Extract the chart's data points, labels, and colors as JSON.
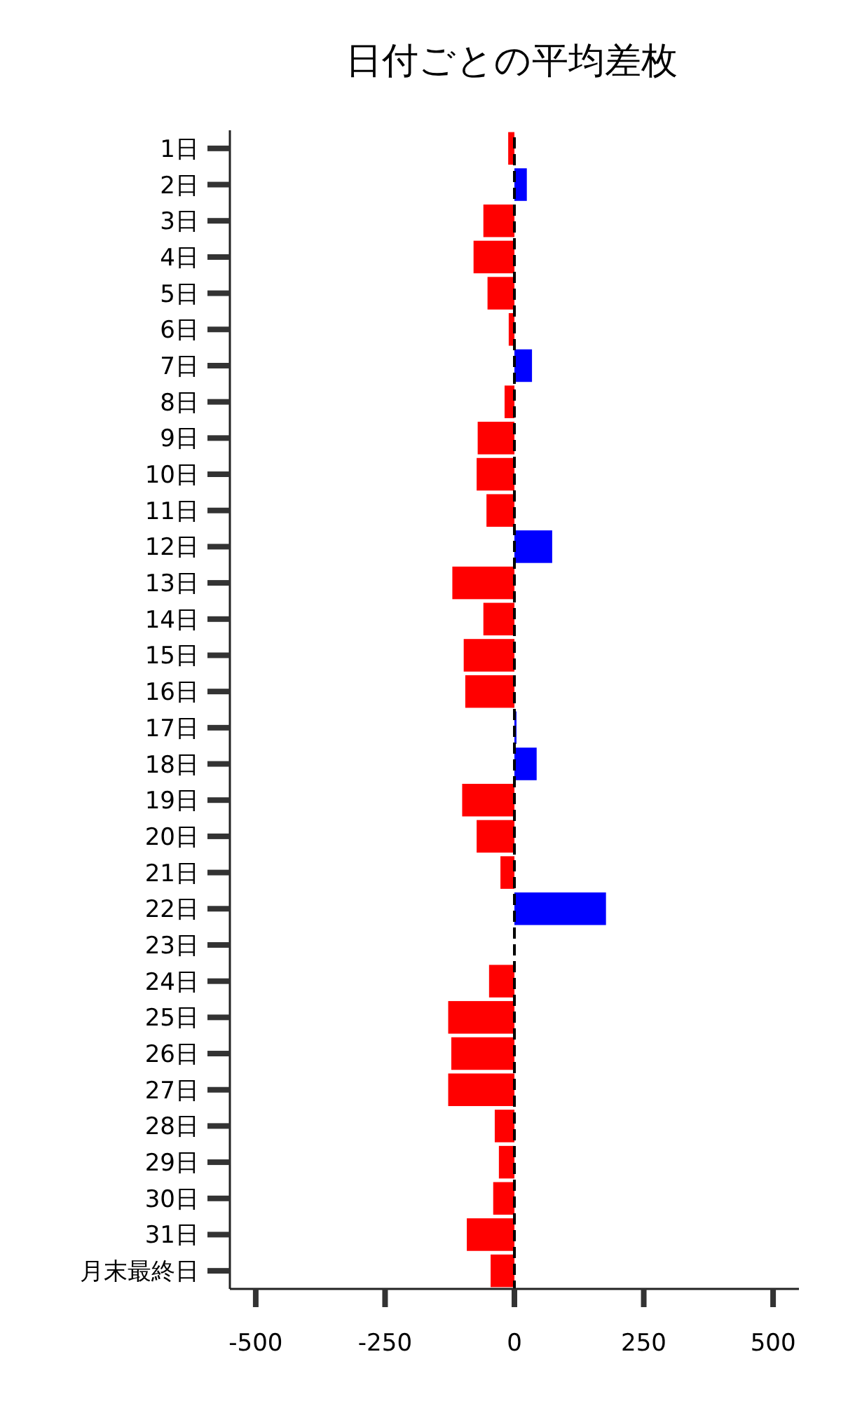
{
  "chart_data": {
    "type": "bar",
    "orientation": "horizontal",
    "title": "日付ごとの平均差枚",
    "categories": [
      "1日",
      "2日",
      "3日",
      "4日",
      "5日",
      "6日",
      "7日",
      "8日",
      "9日",
      "10日",
      "11日",
      "12日",
      "13日",
      "14日",
      "15日",
      "16日",
      "17日",
      "18日",
      "19日",
      "20日",
      "21日",
      "22日",
      "23日",
      "24日",
      "25日",
      "26日",
      "27日",
      "28日",
      "29日",
      "30日",
      "31日",
      "月末最終日"
    ],
    "values": [
      -12,
      24,
      -60,
      -79,
      -52,
      -11,
      34,
      -19,
      -71,
      -73,
      -54,
      73,
      -120,
      -60,
      -98,
      -95,
      4,
      43,
      -101,
      -73,
      -27,
      177,
      0,
      -49,
      -128,
      -122,
      -128,
      -38,
      -30,
      -41,
      -92,
      -46
    ],
    "colors": [
      "#ff0000",
      "#0000ff",
      "#ff0000",
      "#ff0000",
      "#ff0000",
      "#ff0000",
      "#0000ff",
      "#ff0000",
      "#ff0000",
      "#ff0000",
      "#ff0000",
      "#0000ff",
      "#ff0000",
      "#ff0000",
      "#ff0000",
      "#ff0000",
      "#0000ff",
      "#0000ff",
      "#ff0000",
      "#ff0000",
      "#ff0000",
      "#0000ff",
      "#ff0000",
      "#ff0000",
      "#ff0000",
      "#ff0000",
      "#ff0000",
      "#ff0000",
      "#ff0000",
      "#ff0000",
      "#ff0000",
      "#ff0000"
    ],
    "xlim": [
      -550,
      550
    ],
    "xticks": [
      -500,
      -250,
      0,
      250,
      500
    ],
    "ref_lines": [
      {
        "axis": "x",
        "value": 0,
        "color": "#000000",
        "line_style": "dashed"
      }
    ]
  }
}
